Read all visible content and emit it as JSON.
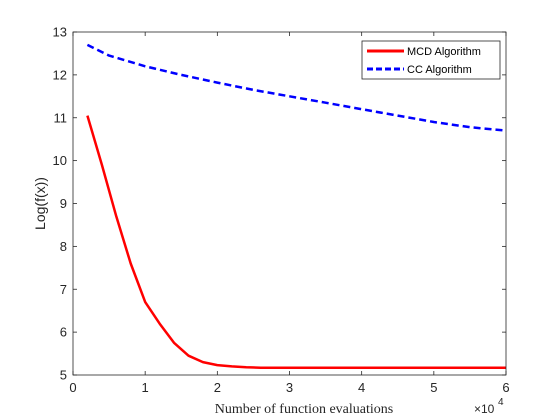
{
  "chart_data": {
    "type": "line",
    "title": "",
    "xlabel": "Number of function evaluations",
    "ylabel": "Log(f(x))",
    "x_multiplier_base": "×10",
    "x_multiplier_exp": "4",
    "xlim": [
      0,
      6
    ],
    "ylim": [
      5,
      13
    ],
    "xticks": [
      "0",
      "1",
      "2",
      "3",
      "4",
      "5",
      "6"
    ],
    "yticks": [
      "5",
      "6",
      "7",
      "8",
      "9",
      "10",
      "11",
      "12",
      "13"
    ],
    "grid": false,
    "legend": "top-right",
    "series": [
      {
        "name": "MCD Algorithm",
        "color": "#ff0000",
        "style": "solid",
        "x": [
          0.2,
          0.4,
          0.6,
          0.8,
          1.0,
          1.2,
          1.4,
          1.6,
          1.8,
          2.0,
          2.2,
          2.4,
          2.6,
          3.0,
          4.0,
          5.0,
          6.0
        ],
        "y": [
          11.05,
          9.9,
          8.7,
          7.6,
          6.7,
          6.2,
          5.75,
          5.45,
          5.3,
          5.23,
          5.2,
          5.18,
          5.17,
          5.17,
          5.17,
          5.17,
          5.17
        ]
      },
      {
        "name": "CC Algorithm",
        "color": "#0000ff",
        "style": "dashed",
        "x": [
          0.2,
          0.5,
          1.0,
          1.5,
          2.0,
          2.5,
          3.0,
          3.5,
          4.0,
          4.5,
          5.0,
          5.5,
          6.0
        ],
        "y": [
          12.7,
          12.45,
          12.2,
          12.0,
          11.82,
          11.65,
          11.5,
          11.35,
          11.2,
          11.05,
          10.9,
          10.78,
          10.7
        ]
      }
    ]
  }
}
